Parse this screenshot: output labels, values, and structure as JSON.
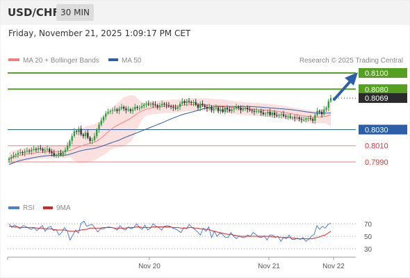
{
  "header": {
    "symbol": "USD/CHF",
    "timeframe": "30 MIN"
  },
  "date_label": "Friday, November 21, 2025 1:09:17 PM CET",
  "legend": {
    "ma20": "MA 20 + Bollinger Bands",
    "ma50": "MA 50",
    "credit": "Research © 2025 Trading Central"
  },
  "rsi_legend": {
    "rsi": "RSI",
    "ma9": "9MA"
  },
  "colors": {
    "up": "#2e9e3e",
    "down": "#333333",
    "ma20": "#f08080",
    "ma50": "#2c5fa8",
    "bands": "#fadada",
    "green_level": "#55a020",
    "blue_level": "#2c5fa8",
    "red_level": "#f08080",
    "rsi": "#4a7fd6",
    "rsi_ma": "#dd2222",
    "arrow": "#2c5fa8"
  },
  "chart_data": [
    {
      "type": "candlestick",
      "title": "USD/CHF",
      "ylim": [
        0.796,
        0.811
      ],
      "x_ticks": [
        "Nov 20",
        "Nov 21",
        "Nov 22"
      ],
      "current_price": "0.8069",
      "levels": [
        {
          "value": 0.81,
          "label": "0.8100",
          "kind": "resistance"
        },
        {
          "value": 0.808,
          "label": "0.8080",
          "kind": "resistance"
        },
        {
          "value": 0.803,
          "label": "0.8030",
          "kind": "pivot"
        },
        {
          "value": 0.801,
          "label": "0.8010",
          "kind": "support"
        },
        {
          "value": 0.799,
          "label": "0.7990",
          "kind": "support"
        }
      ],
      "close": [
        0.7994,
        0.7996,
        0.7998,
        0.7999,
        0.8001,
        0.8002,
        0.8001,
        0.8003,
        0.8004,
        0.8003,
        0.8005,
        0.8006,
        0.8005,
        0.8007,
        0.8006,
        0.8004,
        0.8005,
        0.8006,
        0.8003,
        0.8001,
        0.7998,
        0.7999,
        0.8001,
        0.7999,
        0.8002,
        0.8005,
        0.801,
        0.8016,
        0.8022,
        0.8028,
        0.8027,
        0.8031,
        0.8024,
        0.8022,
        0.8026,
        0.802,
        0.8016,
        0.8017,
        0.8022,
        0.803,
        0.8036,
        0.8041,
        0.8046,
        0.805,
        0.8052,
        0.8053,
        0.8054,
        0.8055,
        0.8053,
        0.8056,
        0.8058,
        0.8056,
        0.8054,
        0.8055,
        0.8053,
        0.8055,
        0.8058,
        0.8057,
        0.8057,
        0.8059,
        0.8061,
        0.8062,
        0.8061,
        0.8062,
        0.8061,
        0.806,
        0.8058,
        0.806,
        0.8062,
        0.8061,
        0.806,
        0.8059,
        0.8058,
        0.8057,
        0.8056,
        0.8058,
        0.8062,
        0.8065,
        0.8063,
        0.8065,
        0.8064,
        0.8063,
        0.8064,
        0.8061,
        0.8057,
        0.8062,
        0.806,
        0.8058,
        0.8056,
        0.8058,
        0.8054,
        0.8056,
        0.8057,
        0.8053,
        0.8055,
        0.8052,
        0.8057,
        0.8055,
        0.8053,
        0.8055,
        0.8056,
        0.8058,
        0.8057,
        0.8054,
        0.8056,
        0.8057,
        0.8055,
        0.8054,
        0.8053,
        0.8052,
        0.8053,
        0.8053,
        0.8051,
        0.8049,
        0.805,
        0.8052,
        0.8048,
        0.8051,
        0.8048,
        0.8047,
        0.8048,
        0.8049,
        0.8047,
        0.8046,
        0.8046,
        0.8045,
        0.8045,
        0.8044,
        0.8045,
        0.8043,
        0.8042,
        0.8042,
        0.8044,
        0.8044,
        0.8043,
        0.8041,
        0.8048,
        0.8053,
        0.8052,
        0.8049,
        0.8055,
        0.8057,
        0.8065,
        0.8069
      ]
    },
    {
      "type": "line",
      "title": "RSI",
      "ylim": [
        30,
        70
      ],
      "y_ticks": [
        70,
        50,
        30
      ],
      "series": [
        {
          "name": "RSI",
          "values": [
            70,
            64,
            68,
            65,
            62,
            67,
            66,
            63,
            61,
            64,
            59,
            63,
            67,
            58,
            64,
            66,
            59,
            61,
            52,
            56,
            64,
            58,
            44,
            52,
            60,
            55,
            71,
            74,
            66,
            68,
            69,
            63,
            57,
            62,
            62,
            64,
            65,
            64,
            63,
            60,
            67,
            62,
            60,
            65,
            62,
            64,
            70,
            64,
            61,
            68,
            60,
            63,
            70,
            66,
            64,
            60,
            66,
            67,
            66,
            63,
            62,
            59,
            56,
            64,
            62,
            69,
            64,
            61,
            57,
            52,
            63,
            58,
            65,
            48,
            58,
            50,
            55,
            53,
            48,
            48,
            56,
            50,
            46,
            51,
            48,
            48,
            52,
            50,
            56,
            53,
            49,
            48,
            51,
            44,
            52,
            52,
            48,
            50,
            42,
            48,
            46,
            52,
            45,
            45,
            47,
            45,
            48,
            42,
            45,
            50,
            53,
            67,
            61,
            66,
            63,
            69,
            71
          ]
        },
        {
          "name": "9MA",
          "values": [
            66,
            66,
            65,
            65,
            64,
            64,
            64,
            64,
            64,
            64,
            63,
            63,
            63,
            62,
            62,
            62,
            61,
            60,
            60,
            60,
            60,
            59,
            58,
            58,
            58,
            59,
            60,
            61,
            61,
            63,
            63,
            63,
            63,
            63,
            64,
            64,
            64,
            64,
            63,
            63,
            63,
            63,
            63,
            64,
            64,
            64,
            65,
            65,
            64,
            64,
            64,
            64,
            65,
            65,
            65,
            65,
            65,
            65,
            65,
            64,
            64,
            64,
            63,
            63,
            63,
            64,
            64,
            63,
            63,
            62,
            62,
            61,
            61,
            59,
            58,
            57,
            56,
            55,
            54,
            53,
            53,
            52,
            51,
            50,
            50,
            50,
            50,
            50,
            50,
            50,
            50,
            50,
            50,
            50,
            50,
            49,
            49,
            49,
            48,
            48,
            48,
            48,
            47,
            47,
            46,
            46,
            46,
            46,
            46,
            46,
            47,
            48,
            49,
            51,
            52,
            55,
            58
          ]
        }
      ]
    }
  ]
}
